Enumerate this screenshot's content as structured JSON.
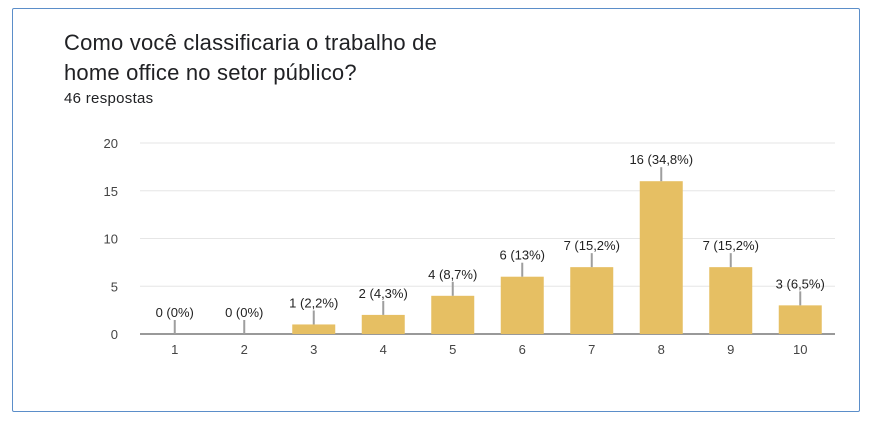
{
  "title": "Como você classificaria o trabalho de\nhome office no setor público?",
  "subtitle": "46 respostas",
  "chart_data": {
    "type": "bar",
    "title": "Como você classificaria o trabalho de home office no setor público?",
    "categories": [
      "1",
      "2",
      "3",
      "4",
      "5",
      "6",
      "7",
      "8",
      "9",
      "10"
    ],
    "values": [
      0,
      0,
      1,
      2,
      4,
      6,
      7,
      16,
      7,
      3
    ],
    "labels": [
      "0 (0%)",
      "0 (0%)",
      "1 (2,2%)",
      "2 (4,3%)",
      "4 (8,7%)",
      "6 (13%)",
      "7 (15,2%)",
      "16 (34,8%)",
      "7 (15,2%)",
      "3 (6,5%)"
    ],
    "yticks": [
      "0",
      "5",
      "10",
      "15",
      "20"
    ],
    "ylim": [
      0,
      20
    ],
    "grid": true,
    "bar_color": "#e6bf63",
    "label_line_color": "#9e9e9e",
    "grid_color": "#e6e6e6"
  }
}
